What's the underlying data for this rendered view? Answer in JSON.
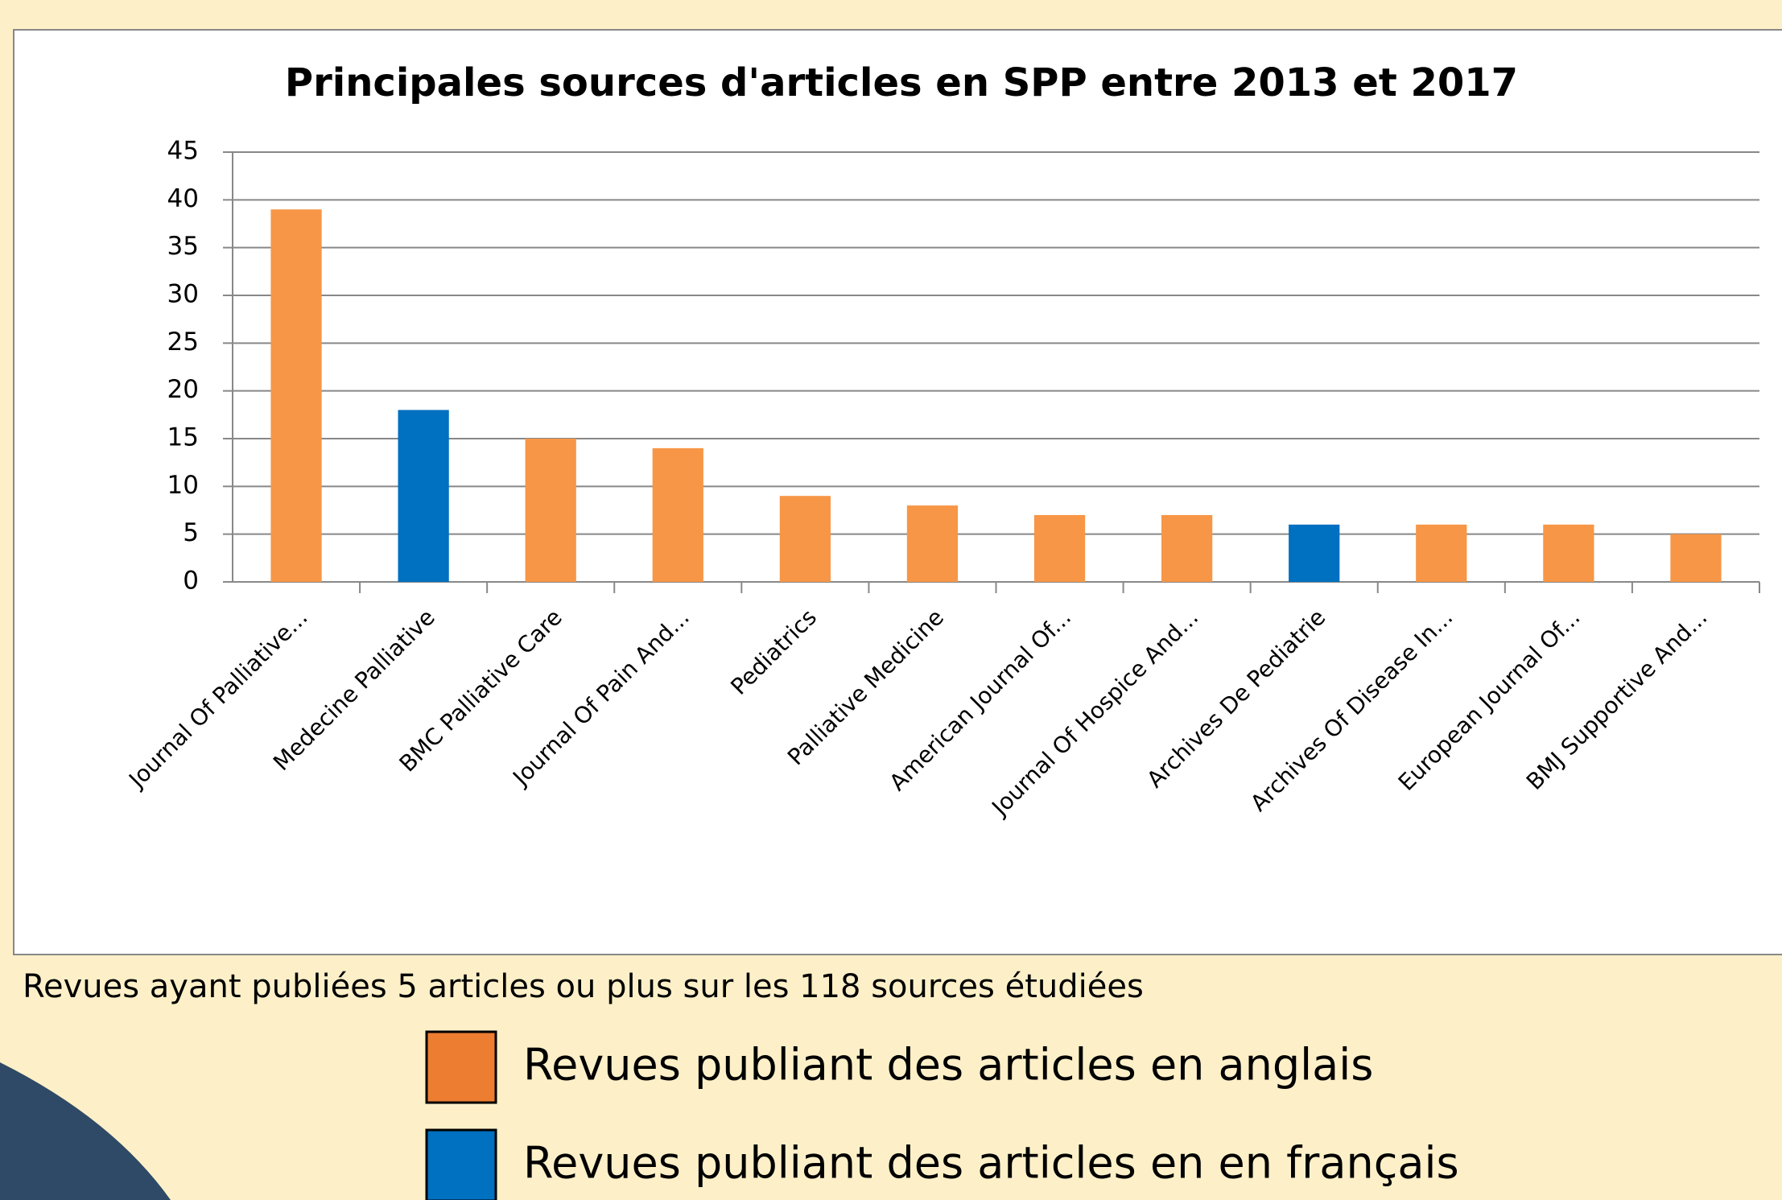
{
  "chart_data": {
    "type": "bar",
    "title": "Principales  sources d'articles  en SPP entre 2013 et 2017",
    "categories": [
      "Journal Of Palliative...",
      "Medecine Palliative",
      "BMC Palliative Care",
      "Journal Of Pain And...",
      "Pediatrics",
      "Palliative Medicine",
      "American Journal Of...",
      "Journal Of Hospice And...",
      "Archives De Pediatrie",
      "Archives Of Disease In...",
      "European Journal Of...",
      "BMJ Supportive And..."
    ],
    "values": [
      39,
      18,
      15,
      14,
      9,
      8,
      7,
      7,
      6,
      6,
      6,
      5
    ],
    "colors": [
      "#f79646",
      "#0070c0",
      "#f79646",
      "#f79646",
      "#f79646",
      "#f79646",
      "#f79646",
      "#f79646",
      "#0070c0",
      "#f79646",
      "#f79646",
      "#f79646"
    ],
    "ylim": [
      0,
      45
    ],
    "yticks": [
      0,
      5,
      10,
      15,
      20,
      25,
      30,
      35,
      40,
      45
    ],
    "grid": true,
    "caption": "Revues ayant publiées 5 articles ou plus sur les 118 sources étudiées",
    "legend": [
      {
        "label": "Revues publiant des articles en anglais",
        "color": "#ed7d31"
      },
      {
        "label": "Revues publiant des articles en en français",
        "color": "#0070c0"
      }
    ]
  }
}
